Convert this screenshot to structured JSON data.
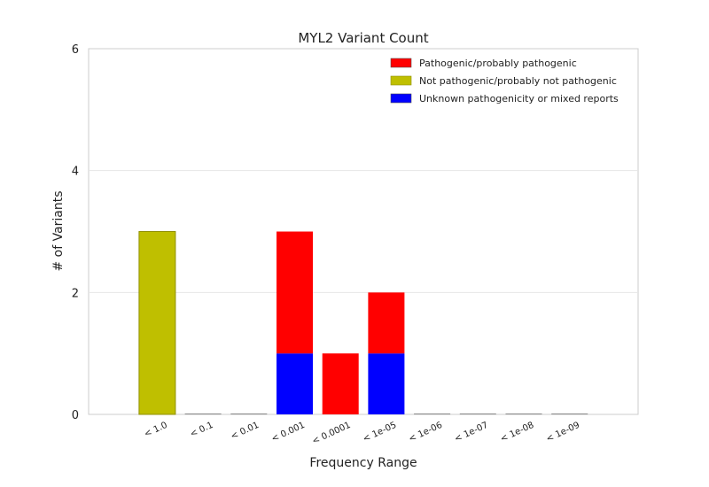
{
  "chart_data": {
    "type": "bar",
    "stacked": true,
    "title": "MYL2 Variant Count",
    "xlabel": "Frequency Range",
    "ylabel": "# of Variants",
    "categories": [
      "< 1.0",
      "< 0.1",
      "< 0.01",
      "< 0.001",
      "< 0.0001",
      "< 1e-05",
      "< 1e-06",
      "< 1e-07",
      "< 1e-08",
      "< 1e-09"
    ],
    "yticks": [
      "0",
      "2",
      "4",
      "6"
    ],
    "ylim": [
      0,
      6
    ],
    "grid": true,
    "legend_position": "top-right",
    "series": [
      {
        "name": "Unknown pathogenicity or mixed reports",
        "color": "#0000ff",
        "values": [
          0,
          0,
          0,
          1,
          0,
          1,
          0,
          0,
          0,
          0
        ]
      },
      {
        "name": "Not pathogenic/probably not pathogenic",
        "color": "#bfbf00",
        "values": [
          3,
          0,
          0,
          0,
          0,
          0,
          0,
          0,
          0,
          0
        ]
      },
      {
        "name": "Pathogenic/probably pathogenic",
        "color": "#ff0000",
        "values": [
          0,
          0,
          0,
          2,
          1,
          1,
          0,
          0,
          0,
          0
        ]
      }
    ],
    "legend_order": [
      "Pathogenic/probably pathogenic",
      "Not pathogenic/probably not pathogenic",
      "Unknown pathogenicity or mixed reports"
    ]
  }
}
